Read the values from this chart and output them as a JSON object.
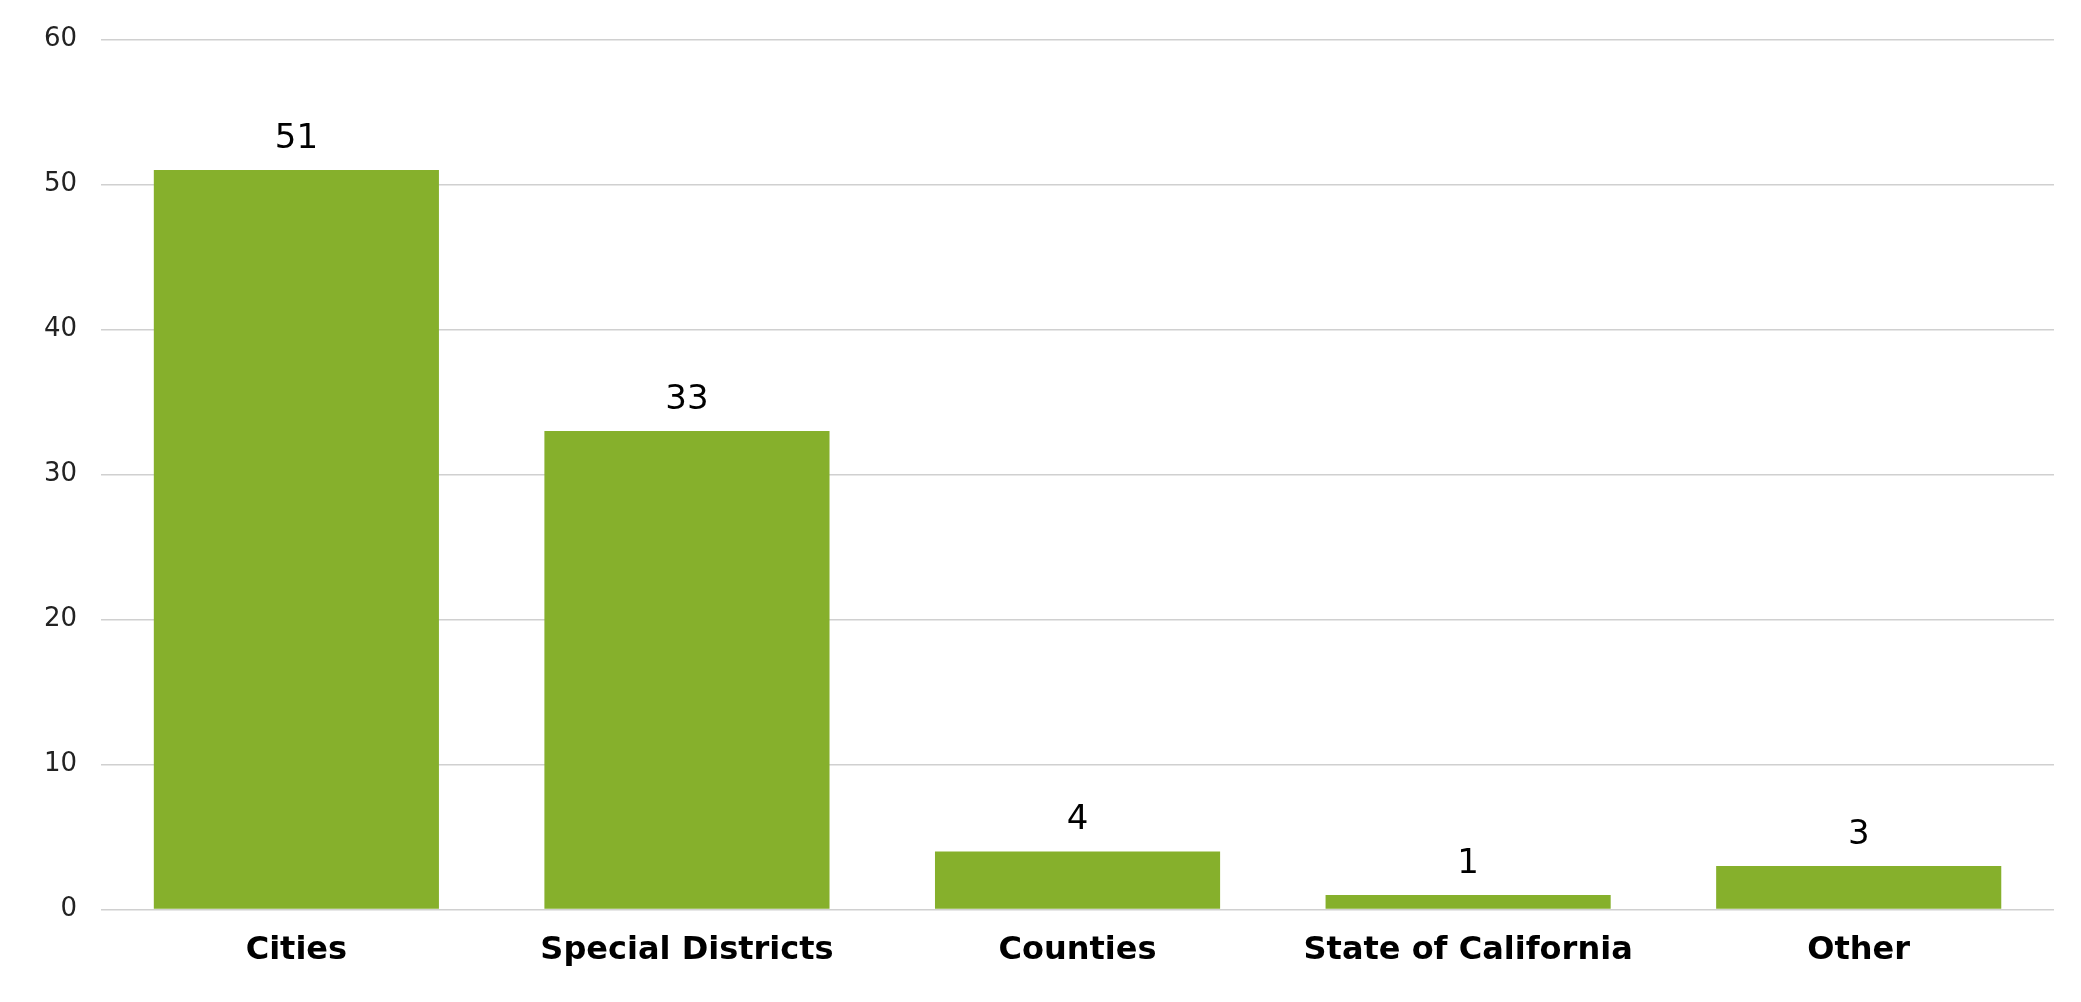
{
  "chart_data": {
    "type": "bar",
    "categories": [
      "Cities",
      "Special Districts",
      "Counties",
      "State of California",
      "Other"
    ],
    "values": [
      51,
      33,
      4,
      1,
      3
    ],
    "color": "#86b02c",
    "ylim": [
      0,
      60
    ],
    "yticks": [
      0,
      10,
      20,
      30,
      40,
      50,
      60
    ],
    "grid": "y",
    "data_labels": true
  }
}
